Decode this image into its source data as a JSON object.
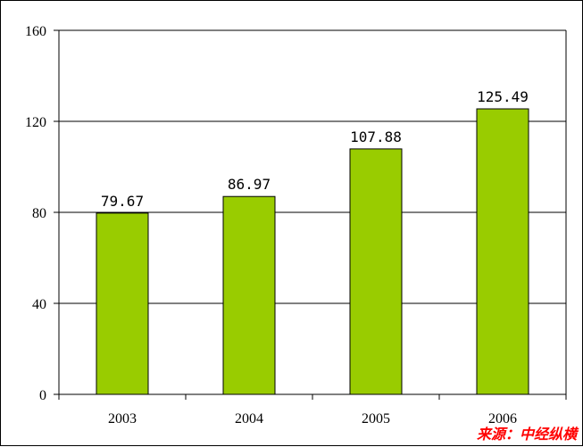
{
  "chart_data": {
    "type": "bar",
    "categories": [
      "2003",
      "2004",
      "2005",
      "2006"
    ],
    "values": [
      79.67,
      86.97,
      107.88,
      125.49
    ],
    "value_labels": [
      "79.67",
      "86.97",
      "107.88",
      "125.49"
    ],
    "title": "",
    "xlabel": "",
    "ylabel": "",
    "ylim": [
      0,
      160
    ],
    "yticks": [
      "0",
      "40",
      "80",
      "120",
      "160"
    ],
    "grid": true,
    "bar_color": "#99cc00",
    "grid_color": "#000000"
  },
  "source": {
    "text": "来源：中经纵横",
    "color": "#ff0000"
  }
}
